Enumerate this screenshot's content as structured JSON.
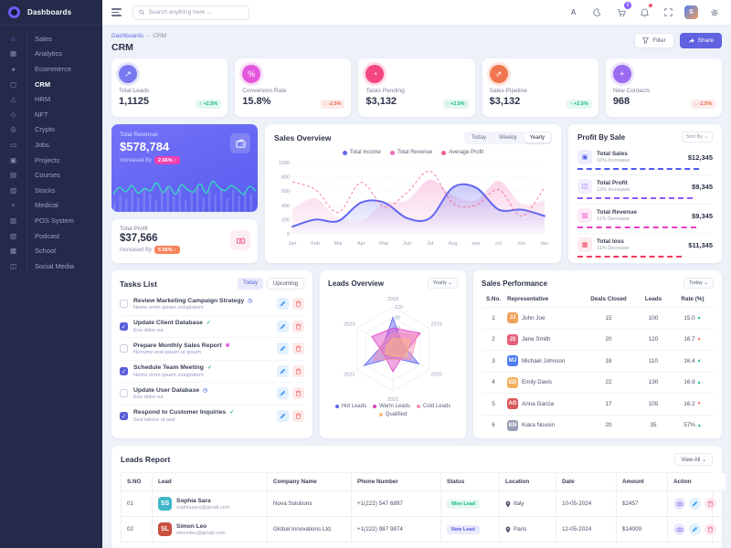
{
  "sidebar": {
    "brand": "Dashboards",
    "items": [
      {
        "label": "Sales",
        "icon": "home-icon"
      },
      {
        "label": "Analytics",
        "icon": "widgets-icon"
      },
      {
        "label": "Ecommerce",
        "icon": "pie-icon"
      },
      {
        "label": "CRM",
        "icon": "bag-icon",
        "active": true
      },
      {
        "label": "HRM",
        "icon": "prism-icon"
      },
      {
        "label": "NFT",
        "icon": "diamond-icon"
      },
      {
        "label": "Crypto",
        "icon": "coin-icon"
      },
      {
        "label": "Jobs",
        "icon": "phone-icon"
      },
      {
        "label": "Projects",
        "icon": "shield-icon"
      },
      {
        "label": "Courses",
        "icon": "file-icon"
      },
      {
        "label": "Stocks",
        "icon": "inbox-icon"
      },
      {
        "label": "Medical",
        "icon": "medkit-icon"
      },
      {
        "label": "POS System",
        "icon": "camera-icon"
      },
      {
        "label": "Podcast",
        "icon": "mic-icon"
      },
      {
        "label": "School",
        "icon": "school-icon"
      },
      {
        "label": "Social Media",
        "icon": "bank-icon"
      }
    ]
  },
  "header": {
    "search_placeholder": "Search anything here ...",
    "cart_badge": "5",
    "avatar_initial": "S"
  },
  "breadcrumb": {
    "root": "Dashboards",
    "separator": "→",
    "current": "CRM",
    "title": "CRM"
  },
  "actions": {
    "filter": "Filter",
    "share": "Share"
  },
  "kpis": [
    {
      "label": "Total Leads",
      "value": "1,1125",
      "delta": "+2.5%",
      "dir": "up",
      "color": "#7879f1",
      "icon": "trend-up-icon",
      "glyph": "↗"
    },
    {
      "label": "Conversion Rate",
      "value": "15.8%",
      "delta": "-2.5%",
      "dir": "down",
      "color": "#e357dd",
      "icon": "percent-icon",
      "glyph": "%"
    },
    {
      "label": "Tasks Pending",
      "value": "$3,132",
      "delta": "+2.5%",
      "dir": "up",
      "color": "#f4477f",
      "icon": "clock-icon",
      "glyph": "◔"
    },
    {
      "label": "Sales Pipeline",
      "value": "$3,132",
      "delta": "+2.5%",
      "dir": "up",
      "color": "#f0764f",
      "icon": "chart-arrow-icon",
      "glyph": "⇗"
    },
    {
      "label": "New Contacts",
      "value": "968",
      "delta": "-2.5%",
      "dir": "down",
      "color": "#9b6bf2",
      "icon": "user-plus-icon",
      "glyph": "+"
    }
  ],
  "revenue_card": {
    "label": "Total Revenue",
    "value": "$578,784",
    "note": "Increased By",
    "badge": "2.66% ↑"
  },
  "profit_card": {
    "label": "Total Profit",
    "value": "$37,566",
    "note": "Increased By",
    "badge": "5.56% ↑"
  },
  "sales_overview": {
    "title": "Sales Overview",
    "tabs": [
      "Today",
      "Weekly",
      "Yearly"
    ],
    "active_tab": "Yearly"
  },
  "profit_by_sale": {
    "title": "Profit By Sale",
    "sort_label": "Sort By ⌄",
    "items": [
      {
        "name": "Total Sales",
        "sub": "10% Increases",
        "value": "$12,345",
        "color": "#4d5bf0",
        "pct": 90,
        "icon": "sales-icon"
      },
      {
        "name": "Total Profit",
        "sub": "12% Increases",
        "value": "$9,345",
        "color": "#8b5cf6",
        "pct": 85,
        "icon": "profit-icon"
      },
      {
        "name": "Total Revenue",
        "sub": "11% Decrease",
        "value": "$9,345",
        "color": "#f039c3",
        "pct": 88,
        "icon": "revenue-icon"
      },
      {
        "name": "Total loss",
        "sub": "11% Decrease",
        "value": "$11,345",
        "color": "#f03958",
        "pct": 77,
        "icon": "loss-icon"
      }
    ]
  },
  "tasks": {
    "title": "Tasks List",
    "tabs": [
      "Today",
      "Upcoming"
    ],
    "active_tab": "Today",
    "items": [
      {
        "title": "Review Marketing Campaign Strategy",
        "desc": "Nemo enim ipsam voluptatem",
        "done": false,
        "flag": "◷",
        "flag_color": "#6a7df0"
      },
      {
        "title": "Update Client Database",
        "desc": "Eos dolor ea",
        "done": true,
        "flag": "✓",
        "flag_color": "#12b880"
      },
      {
        "title": "Prepare Monthly Sales Report",
        "desc": "Nonumy erat ipsum ut ipsum",
        "done": false,
        "flag": "✱",
        "flag_color": "#e357dd"
      },
      {
        "title": "Schedule Team Meeting",
        "desc": "Nemo enim ipsam voluptatem",
        "done": true,
        "flag": "✓",
        "flag_color": "#12b880"
      },
      {
        "title": "Update User Database",
        "desc": "Eos dolor ea",
        "done": false,
        "flag": "◷",
        "flag_color": "#6a7df0"
      },
      {
        "title": "Respond to Customer Inquiries",
        "desc": "Sed labore ut sed",
        "done": true,
        "flag": "✓",
        "flag_color": "#12b880"
      }
    ]
  },
  "leads_overview": {
    "title": "Leads Overview",
    "period": "Yearly ⌄"
  },
  "sales_performance": {
    "title": "Sales Performance",
    "period": "Today ⌄",
    "columns": [
      "S.No.",
      "Representative",
      "Deals Closed",
      "Leads",
      "Rate (%)"
    ],
    "rows": [
      {
        "no": "1",
        "name": "John Joe",
        "deals": "15",
        "leads": "100",
        "rate": "15.0",
        "dir": "up",
        "avatar_color": "#f0a35e"
      },
      {
        "no": "2",
        "name": "Jane Smith",
        "deals": "20",
        "leads": "120",
        "rate": "16.7",
        "dir": "down",
        "avatar_color": "#e2607a"
      },
      {
        "no": "3",
        "name": "Michael Johnson",
        "deals": "18",
        "leads": "110",
        "rate": "16.4",
        "dir": "up",
        "avatar_color": "#4f7df2"
      },
      {
        "no": "4",
        "name": "Emily Davis",
        "deals": "22",
        "leads": "130",
        "rate": "16.9",
        "dir": "up",
        "avatar_color": "#f2b05e"
      },
      {
        "no": "5",
        "name": "Anna Garcia",
        "deals": "17",
        "leads": "105",
        "rate": "16.2",
        "dir": "down",
        "avatar_color": "#d85858"
      },
      {
        "no": "6",
        "name": "Kiara Nousin",
        "deals": "20",
        "leads": "35",
        "rate": "57%",
        "dir": "up",
        "avatar_color": "#9aa0b5"
      }
    ]
  },
  "leads_report": {
    "title": "Leads Report",
    "view_all": "View All ⌄",
    "columns": [
      "S.NO",
      "Lead",
      "Company Name",
      "Phone Number",
      "Status",
      "Location",
      "Date",
      "Amount",
      "Action"
    ],
    "rows": [
      {
        "no": "01",
        "name": "Sophia Sara",
        "email": "sophiasara@gmail.com",
        "phone": "+1(222) 547 6897",
        "company": "Nova Solutions",
        "status": "Won Lead",
        "status_type": "won",
        "location": "Italy",
        "date": "10-05-2024",
        "amount": "$2457",
        "avatar_color": "#3fb6c9"
      },
      {
        "no": "02",
        "name": "Simon Leo",
        "email": "simonleo@gmail.com",
        "phone": "+1(222) 987 9874",
        "company": "Global Innovations Ltd.",
        "status": "New Lead",
        "status_type": "new",
        "location": "Paris",
        "date": "12-05-2024",
        "amount": "$14009",
        "avatar_color": "#c94f3f"
      }
    ]
  },
  "chart_data": [
    {
      "id": "sales_overview",
      "type": "area",
      "title": "Sales Overview",
      "x": [
        "Jan",
        "Feb",
        "Mar",
        "Apr",
        "May",
        "Jun",
        "Jul",
        "Aug",
        "sep",
        "oct",
        "nov",
        "dec"
      ],
      "ylim": [
        0,
        1000
      ],
      "yticks": [
        0,
        200,
        400,
        600,
        800,
        1000
      ],
      "grid": true,
      "legend_position": "top",
      "series": [
        {
          "name": "Total Income",
          "color": "#6468f0",
          "style": "solid-gradient",
          "values": [
            100,
            200,
            180,
            440,
            440,
            220,
            220,
            650,
            650,
            340,
            340,
            250
          ]
        },
        {
          "name": "Total Revenue",
          "color": "#f06eb5",
          "style": "area",
          "values": [
            350,
            500,
            220,
            180,
            430,
            470,
            760,
            540,
            470,
            740,
            420,
            470
          ]
        },
        {
          "name": "Average Profit",
          "color": "#f2608f",
          "style": "dashed",
          "values": [
            730,
            620,
            300,
            720,
            380,
            580,
            880,
            430,
            400,
            620,
            250,
            650
          ]
        }
      ]
    },
    {
      "id": "leads_overview",
      "type": "radar",
      "axes": [
        "2018",
        "2019",
        "2020",
        "2021",
        "2022",
        "2023"
      ],
      "rmax": 120,
      "rticks": [
        0,
        30,
        60,
        90,
        120
      ],
      "legend_position": "bottom",
      "series": [
        {
          "name": "Hot Leads",
          "color": "#5b61f1",
          "values": [
            90,
            30,
            85,
            25,
            95,
            30
          ]
        },
        {
          "name": "Warm Leads",
          "color": "#e040c0",
          "values": [
            60,
            90,
            35,
            65,
            30,
            70
          ]
        },
        {
          "name": "Cold Leads",
          "color": "#f48fb1",
          "values": [
            45,
            80,
            60,
            30,
            65,
            35
          ]
        },
        {
          "name": "Qualified",
          "color": "#fdba74",
          "values": [
            30,
            55,
            45,
            20,
            25,
            20
          ]
        }
      ]
    },
    {
      "id": "revenue_spark",
      "type": "line",
      "color": "#35e0b9",
      "values": [
        35,
        55,
        42,
        60,
        38,
        52,
        45,
        68,
        40,
        58,
        35,
        62,
        48,
        42,
        65,
        38,
        72,
        55,
        45,
        60,
        50,
        35,
        58,
        44
      ],
      "bars": [
        20,
        35,
        28,
        45,
        30,
        50,
        38,
        25,
        42,
        55,
        33,
        48,
        26,
        40,
        52,
        30,
        44,
        36,
        50,
        28,
        46,
        34,
        42,
        38
      ]
    }
  ]
}
